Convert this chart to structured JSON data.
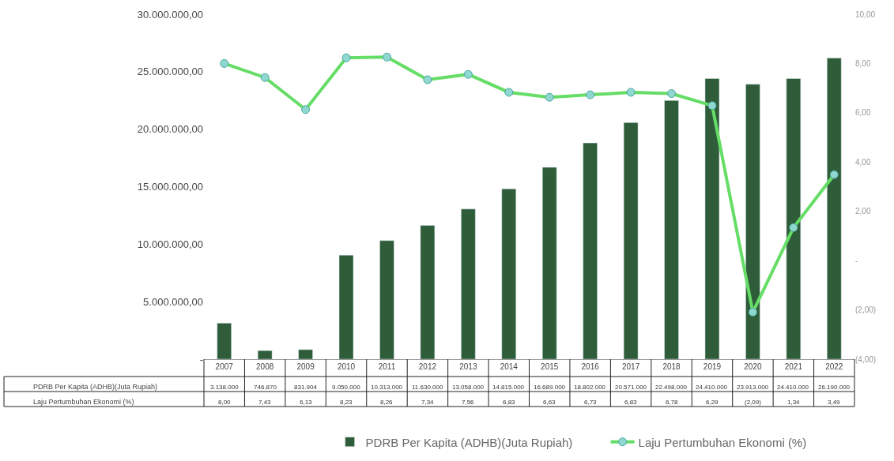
{
  "chart_data": {
    "type": "bar",
    "categories": [
      "2007",
      "2008",
      "2009",
      "2010",
      "2011",
      "2012",
      "2013",
      "2014",
      "2015",
      "2016",
      "2017",
      "2018",
      "2019",
      "2020",
      "2021",
      "2022"
    ],
    "series": [
      {
        "name": "PDRB Per Kapita (ADHB)(Juta Rupiah)",
        "color": "#2f5d3a",
        "values": [
          3138000,
          746870,
          831904,
          9050000,
          10313000,
          11630000,
          13058000,
          14815000,
          16689000,
          18802000,
          20571000,
          22498000,
          24410000,
          23913000,
          24410000,
          26190000
        ],
        "value_labels": [
          "3.138.000",
          "746.870",
          "831.904",
          "9.050.000",
          "10.313.000",
          "11.630.000",
          "13.058.000",
          "14.815.000",
          "16.689.000",
          "18.802.000",
          "20.571.000",
          "22.498.000",
          "24.410.000",
          "23.913.000",
          "24.410.000",
          "26.190.000"
        ]
      },
      {
        "name": "Laju Pertumbuhan Ekonomi (%)",
        "type": "line",
        "axis": "y2",
        "color": "#66dd66",
        "marker": "circle",
        "line_style": "solid",
        "values": [
          8.0,
          7.43,
          6.13,
          8.23,
          8.26,
          7.34,
          7.56,
          6.83,
          6.63,
          6.73,
          6.83,
          6.78,
          6.29,
          -2.09,
          1.34,
          3.49
        ],
        "value_labels": [
          "8,00",
          "7,43",
          "6,13",
          "8,23",
          "8,26",
          "7,34",
          "7,56",
          "6,83",
          "6,63",
          "6,73",
          "6,83",
          "6,78",
          "6,29",
          "(2,09)",
          "1,34",
          "3,49"
        ]
      }
    ],
    "ylim": [
      0,
      30000000
    ],
    "yticks": [
      {
        "value": 0,
        "label": "-"
      },
      {
        "value": 5000000,
        "label": "5.000.000,00"
      },
      {
        "value": 10000000,
        "label": "10.000.000,00"
      },
      {
        "value": 15000000,
        "label": "15.000.000,00"
      },
      {
        "value": 20000000,
        "label": "20.000.000,00"
      },
      {
        "value": 25000000,
        "label": "25.000.000,00"
      },
      {
        "value": 30000000,
        "label": "30.000.000,00"
      }
    ],
    "y2lim": [
      -4,
      10
    ],
    "y2ticks": [
      {
        "value": -4,
        "label": "(4,00)"
      },
      {
        "value": -2,
        "label": "(2,00)"
      },
      {
        "value": 0,
        "label": "-"
      },
      {
        "value": 2,
        "label": "2,00"
      },
      {
        "value": 4,
        "label": "4,00"
      },
      {
        "value": 6,
        "label": "6,00"
      },
      {
        "value": 8,
        "label": "8,00"
      },
      {
        "value": 10,
        "label": "10,00"
      }
    ],
    "legend": "bottom"
  }
}
